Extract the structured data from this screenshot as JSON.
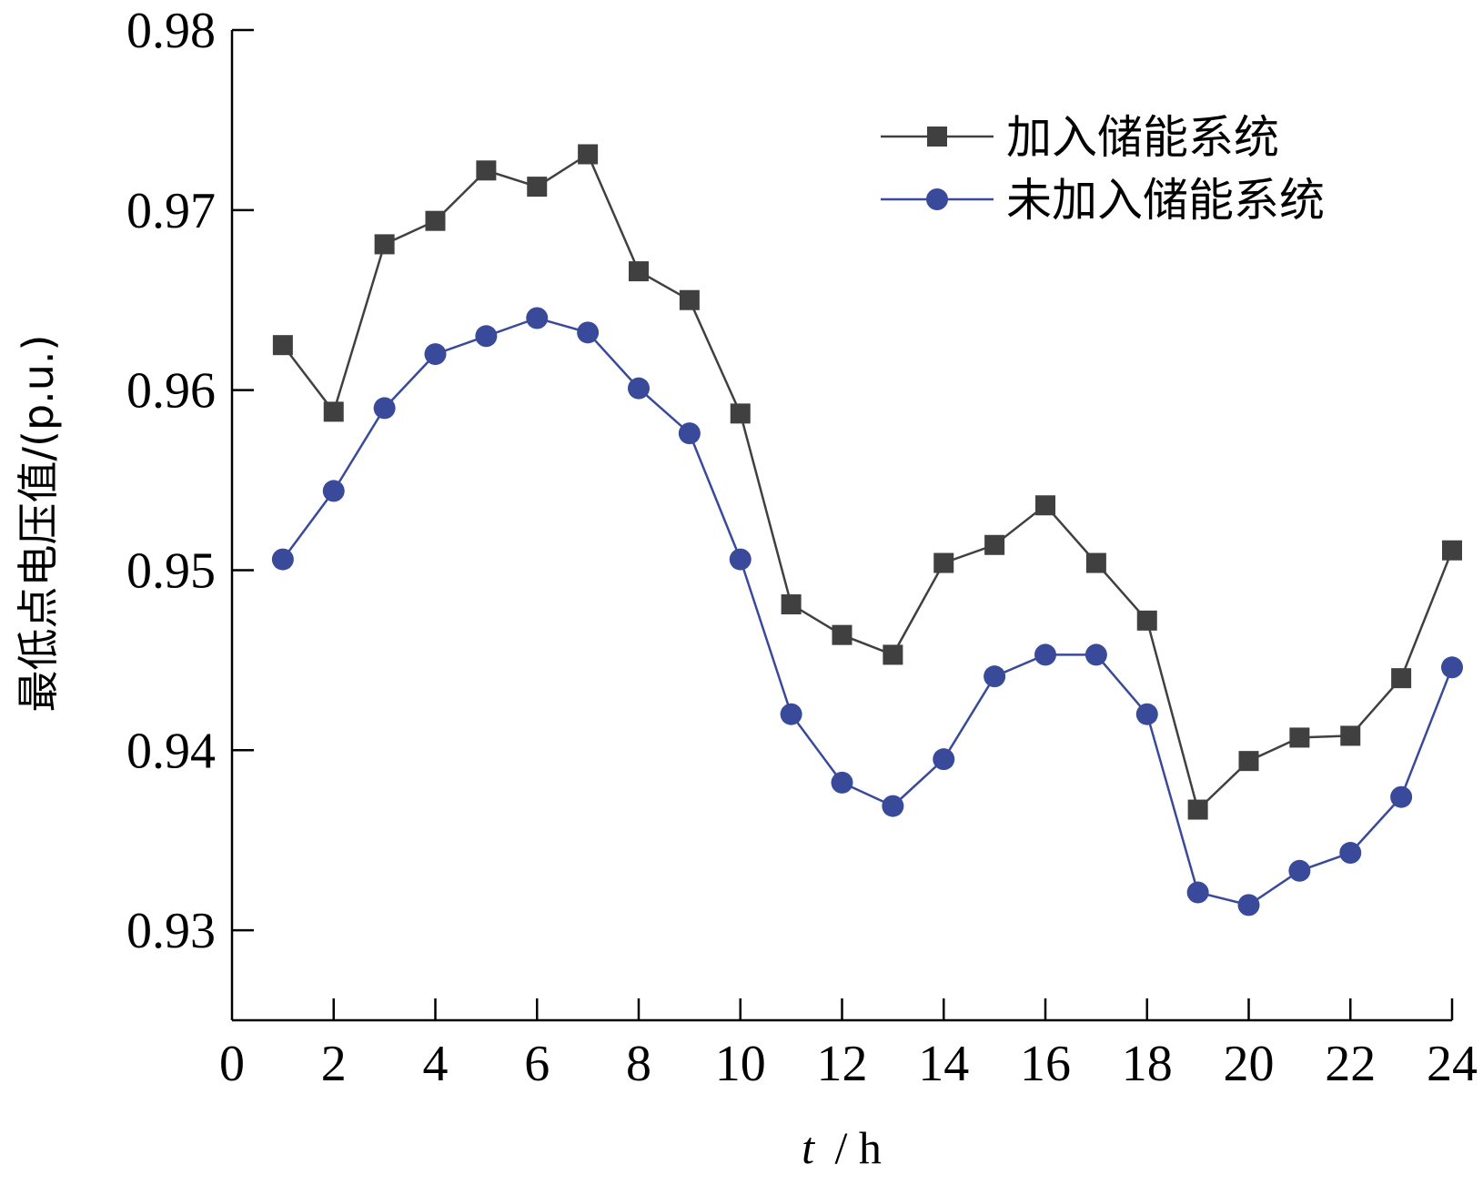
{
  "chart_data": {
    "type": "line",
    "title": "",
    "xlabel": {
      "var": "t",
      "unit": "/ h"
    },
    "ylabel": "最低点电压值/(p.u.)",
    "xlim": [
      0,
      24
    ],
    "ylim": [
      0.925,
      0.98
    ],
    "xticks": [
      "0",
      "2",
      "4",
      "6",
      "8",
      "10",
      "12",
      "14",
      "16",
      "18",
      "20",
      "22",
      "24"
    ],
    "yticks": [
      "0.98",
      "0.97",
      "0.96",
      "0.95",
      "0.94",
      "0.93"
    ],
    "grid": false,
    "legend_position": "top-right",
    "x": [
      1,
      2,
      3,
      4,
      5,
      6,
      7,
      8,
      9,
      10,
      11,
      12,
      13,
      14,
      15,
      16,
      17,
      18,
      19,
      20,
      21,
      22,
      23,
      24
    ],
    "series": [
      {
        "name": "加入储能系统",
        "marker": "square",
        "color": "#404040",
        "values": [
          0.9625,
          0.9588,
          0.9681,
          0.9694,
          0.9722,
          0.9713,
          0.9731,
          0.9666,
          0.965,
          0.9587,
          0.9481,
          0.9464,
          0.9453,
          0.9504,
          0.9514,
          0.9536,
          0.9504,
          0.9472,
          0.9367,
          0.9394,
          0.9407,
          0.9408,
          0.944,
          0.9511
        ]
      },
      {
        "name": "未加入储能系统",
        "marker": "circle",
        "color": "#3a4a9a",
        "values": [
          0.9506,
          0.9544,
          0.959,
          0.962,
          0.963,
          0.964,
          0.9632,
          0.9601,
          0.9576,
          0.9506,
          0.942,
          0.9382,
          0.9369,
          0.9395,
          0.9441,
          0.9453,
          0.9453,
          0.942,
          0.9321,
          0.9314,
          0.9333,
          0.9343,
          0.9374,
          0.9446
        ]
      }
    ]
  }
}
